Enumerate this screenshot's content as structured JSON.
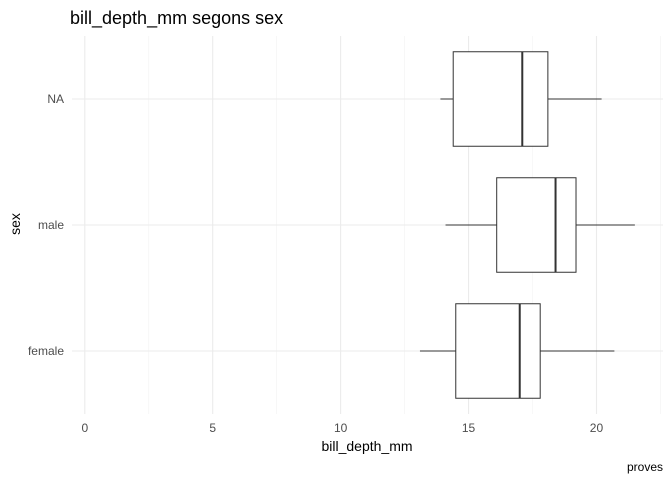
{
  "chart_data": {
    "type": "boxplot",
    "orientation": "horizontal",
    "title": "bill_depth_mm segons sex",
    "xlabel": "bill_depth_mm",
    "ylabel": "sex",
    "caption": "proves",
    "xlim": [
      -0.5,
      22.6
    ],
    "x_ticks": [
      0,
      5,
      10,
      15,
      20
    ],
    "x_tick_labels": [
      "0",
      "5",
      "10",
      "15",
      "20"
    ],
    "grid": true,
    "categories": [
      "female",
      "male",
      "NA"
    ],
    "boxes": [
      {
        "category": "female",
        "min": 13.1,
        "q1": 14.5,
        "median": 17.0,
        "q3": 17.8,
        "max": 20.7
      },
      {
        "category": "male",
        "min": 14.1,
        "q1": 16.1,
        "median": 18.4,
        "q3": 19.2,
        "max": 21.5
      },
      {
        "category": "NA",
        "min": 13.9,
        "q1": 14.4,
        "median": 17.1,
        "q3": 18.1,
        "max": 20.2
      }
    ]
  }
}
